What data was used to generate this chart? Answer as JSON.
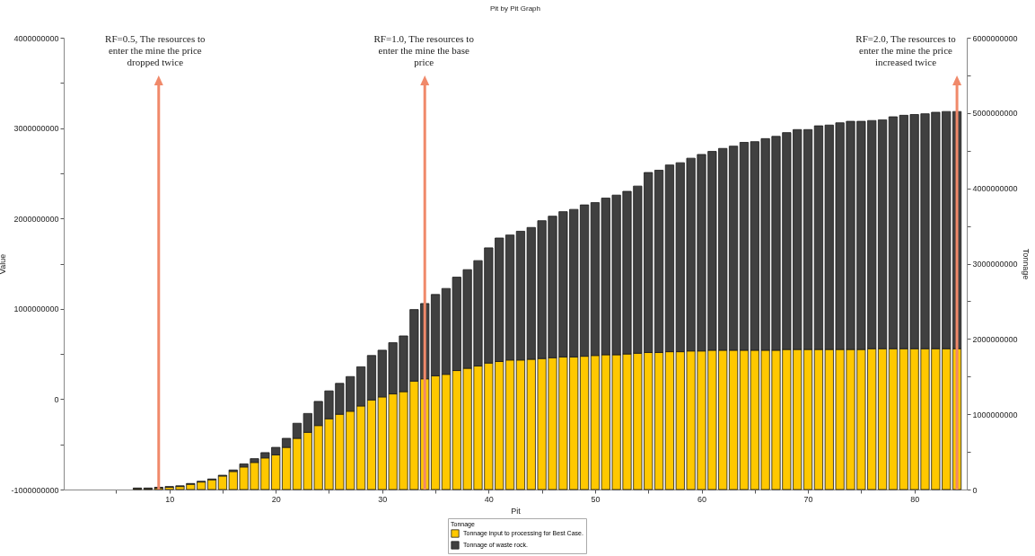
{
  "chart_data": {
    "type": "bar",
    "title": "Pit by Pit Graph",
    "xlabel": "Pit",
    "ylabel": "Value",
    "y2label": "Tonnage",
    "legend_title": "Tonnage",
    "stacked": true,
    "legend": "bottom",
    "grid": false,
    "x": [
      7,
      8,
      9,
      10,
      11,
      12,
      13,
      14,
      15,
      16,
      17,
      18,
      19,
      20,
      21,
      22,
      23,
      24,
      25,
      26,
      27,
      28,
      29,
      30,
      31,
      32,
      33,
      34,
      35,
      36,
      37,
      38,
      39,
      40,
      41,
      42,
      43,
      44,
      45,
      46,
      47,
      48,
      49,
      50,
      51,
      52,
      53,
      54,
      55,
      56,
      57,
      58,
      59,
      60,
      61,
      62,
      63,
      64,
      65,
      66,
      67,
      68,
      69,
      70,
      71,
      72,
      73,
      74,
      75,
      76,
      77,
      78,
      79,
      80,
      81,
      82,
      83,
      84
    ],
    "series": [
      {
        "name": "Tonnage input to processing for Best Case.",
        "color": "#ffc800",
        "axis": "y2",
        "values": [
          10000000,
          10000000,
          20000000,
          30000000,
          40000000,
          70000000,
          100000000,
          130000000,
          180000000,
          240000000,
          300000000,
          360000000,
          420000000,
          460000000,
          560000000,
          680000000,
          760000000,
          850000000,
          940000000,
          1000000000,
          1040000000,
          1110000000,
          1190000000,
          1230000000,
          1270000000,
          1300000000,
          1440000000,
          1470000000,
          1510000000,
          1530000000,
          1580000000,
          1610000000,
          1640000000,
          1680000000,
          1700000000,
          1720000000,
          1720000000,
          1730000000,
          1740000000,
          1750000000,
          1760000000,
          1760000000,
          1770000000,
          1780000000,
          1790000000,
          1790000000,
          1800000000,
          1810000000,
          1820000000,
          1820000000,
          1830000000,
          1830000000,
          1840000000,
          1840000000,
          1850000000,
          1850000000,
          1850000000,
          1850000000,
          1850000000,
          1850000000,
          1850000000,
          1860000000,
          1860000000,
          1860000000,
          1860000000,
          1860000000,
          1860000000,
          1860000000,
          1860000000,
          1870000000,
          1870000000,
          1870000000,
          1870000000,
          1870000000,
          1870000000,
          1870000000,
          1870000000,
          1870000000
        ]
      },
      {
        "name": "Tonnage of waste rock.",
        "color": "#404040",
        "axis": "y2",
        "values": [
          10000000,
          10000000,
          10000000,
          10000000,
          10000000,
          10000000,
          10000000,
          10000000,
          10000000,
          20000000,
          40000000,
          50000000,
          70000000,
          100000000,
          120000000,
          200000000,
          250000000,
          320000000,
          370000000,
          410000000,
          460000000,
          520000000,
          590000000,
          620000000,
          680000000,
          740000000,
          950000000,
          1000000000,
          1080000000,
          1140000000,
          1240000000,
          1310000000,
          1400000000,
          1530000000,
          1640000000,
          1660000000,
          1710000000,
          1750000000,
          1830000000,
          1880000000,
          1930000000,
          1960000000,
          2010000000,
          2030000000,
          2080000000,
          2120000000,
          2160000000,
          2220000000,
          2390000000,
          2420000000,
          2480000000,
          2510000000,
          2560000000,
          2610000000,
          2640000000,
          2680000000,
          2710000000,
          2760000000,
          2770000000,
          2810000000,
          2840000000,
          2880000000,
          2920000000,
          2920000000,
          2970000000,
          2980000000,
          3010000000,
          3030000000,
          3030000000,
          3030000000,
          3040000000,
          3080000000,
          3100000000,
          3110000000,
          3120000000,
          3140000000,
          3150000000,
          3150000000
        ]
      }
    ],
    "xlim": [
      0.5,
      84.5
    ],
    "xticks": [
      {
        "value": 5,
        "label": null
      },
      10,
      {
        "value": 15,
        "label": null
      },
      20,
      {
        "value": 25,
        "label": null
      },
      30,
      {
        "value": 35,
        "label": null
      },
      40,
      {
        "value": 45,
        "label": null
      },
      50,
      {
        "value": 55,
        "label": null
      },
      60,
      {
        "value": 65,
        "label": null
      },
      70,
      {
        "value": 75,
        "label": null
      },
      80
    ],
    "ylim": [
      -1000000000,
      4000000000
    ],
    "yticks": [
      -1000000000,
      {
        "value": -500000000,
        "label": null
      },
      0,
      {
        "value": 500000000,
        "label": null
      },
      1000000000,
      {
        "value": 1500000000,
        "label": null
      },
      2000000000,
      {
        "value": 2500000000,
        "label": null
      },
      3000000000,
      {
        "value": 3500000000,
        "label": null
      },
      4000000000
    ],
    "y2lim": [
      0,
      6000000000
    ],
    "y2ticks": [
      0,
      {
        "value": 500000000,
        "label": null
      },
      1000000000,
      {
        "value": 1500000000,
        "label": null
      },
      2000000000,
      {
        "value": 2500000000,
        "label": null
      },
      3000000000,
      {
        "value": 3500000000,
        "label": null
      },
      4000000000,
      {
        "value": 4500000000,
        "label": null
      },
      5000000000,
      {
        "value": 5500000000,
        "label": null
      },
      6000000000
    ],
    "ref_lines": [
      {
        "axis": "x",
        "value": 9,
        "color": "#f0896a"
      },
      {
        "axis": "x",
        "value": 34,
        "color": "#f0896a"
      },
      {
        "axis": "x",
        "value": 84,
        "color": "#f0896a"
      }
    ],
    "annotations": [
      "RF=0.5, The resources to enter the mine the price dropped twice",
      "RF=1.0, The resources to enter the mine the base price",
      "RF=2.0, The resources to enter the mine the price increased twice"
    ]
  }
}
